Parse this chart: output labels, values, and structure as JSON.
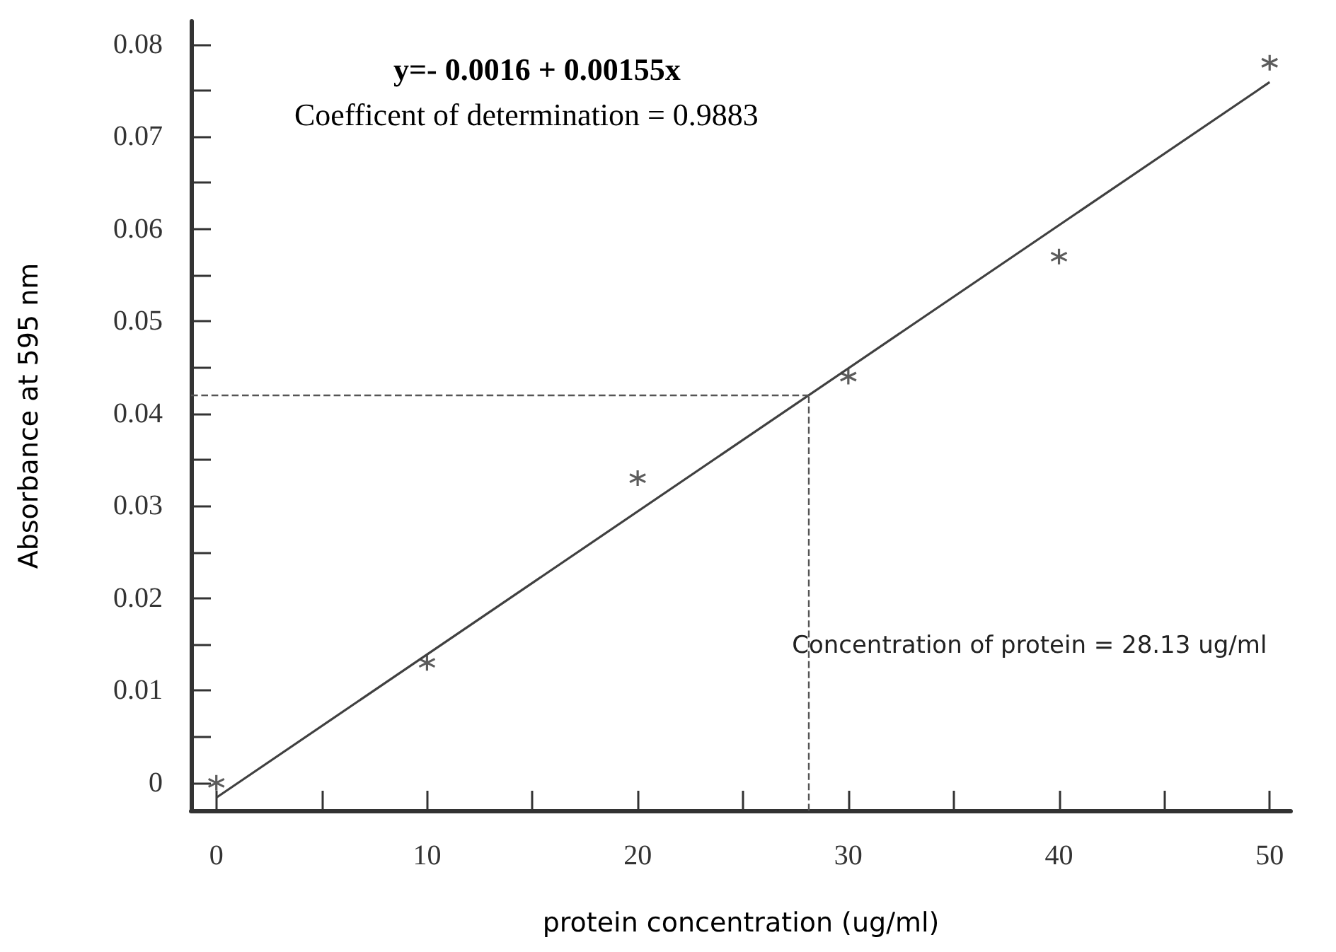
{
  "chart_data": {
    "type": "scatter",
    "xlabel": "protein concentration (ug/ml)",
    "ylabel": "Absorbance at 595 nm",
    "xlim": [
      -1.2,
      51
    ],
    "xticks": [
      0,
      10,
      20,
      30,
      40,
      50
    ],
    "ylim": [
      -0.003,
      0.0825
    ],
    "yticks": [
      0,
      0.01,
      0.02,
      0.03,
      0.04,
      0.05,
      0.06,
      0.07,
      0.08
    ],
    "marker": "cross",
    "grid": false,
    "series": [
      {
        "color": "#333333",
        "x": [
          0,
          10,
          20,
          30,
          40,
          50
        ],
        "values": [
          0,
          0.013,
          0.033,
          0.044,
          0.057,
          0.078
        ]
      },
      {
        "type": "line",
        "color": "#404040",
        "x": [
          0,
          50
        ],
        "values": [
          -0.0016,
          0.0759
        ],
        "marker": "none",
        "line_style": "solid"
      }
    ],
    "ref_lines": [
      {
        "axis": "y",
        "value": 0.042,
        "label": null,
        "line_style": "dashed",
        "color": "#555555"
      },
      {
        "axis": "x",
        "value": 28.13,
        "label": "Concentration of protein = 28.13 ug/ml",
        "line_style": "dashed",
        "color": "#555555"
      }
    ],
    "annotations": [
      "y=- 0.0016 + 0.00155x",
      "Coefficent of determination = 0.9883"
    ]
  }
}
